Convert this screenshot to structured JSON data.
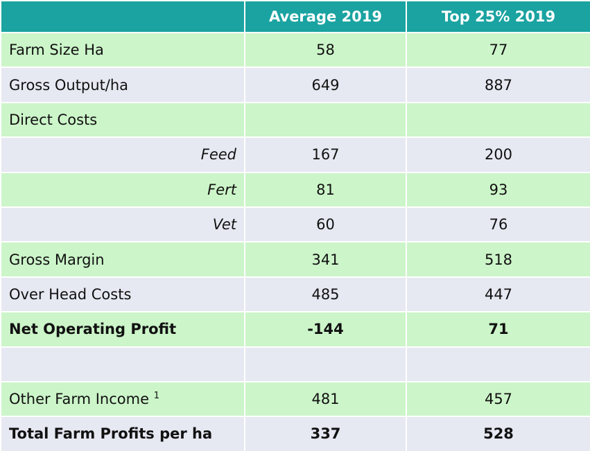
{
  "table": {
    "columns": [
      "Average 2019",
      "Top 25% 2019"
    ],
    "rows": [
      {
        "label": "Farm Size Ha",
        "values": [
          58,
          77
        ]
      },
      {
        "label": "Gross Output/ha",
        "values": [
          649,
          887
        ]
      },
      {
        "label": "Direct Costs",
        "values": [
          null,
          null
        ]
      },
      {
        "label": "Feed",
        "values": [
          167,
          200
        ],
        "style": "sub"
      },
      {
        "label": "Fert",
        "values": [
          81,
          93
        ],
        "style": "sub"
      },
      {
        "label": "Vet",
        "values": [
          60,
          76
        ],
        "style": "sub"
      },
      {
        "label": "Gross Margin",
        "values": [
          341,
          518
        ]
      },
      {
        "label": "Over Head Costs",
        "values": [
          485,
          447
        ]
      },
      {
        "label": "Net Operating Profit",
        "values": [
          -144,
          71
        ],
        "style": "bold"
      },
      {
        "label": null,
        "values": [
          null,
          null
        ]
      },
      {
        "label": "Other Farm Income",
        "note": "1",
        "values": [
          481,
          457
        ]
      },
      {
        "label": "Total Farm Profits per ha",
        "values": [
          337,
          528
        ],
        "style": "bold"
      }
    ]
  }
}
